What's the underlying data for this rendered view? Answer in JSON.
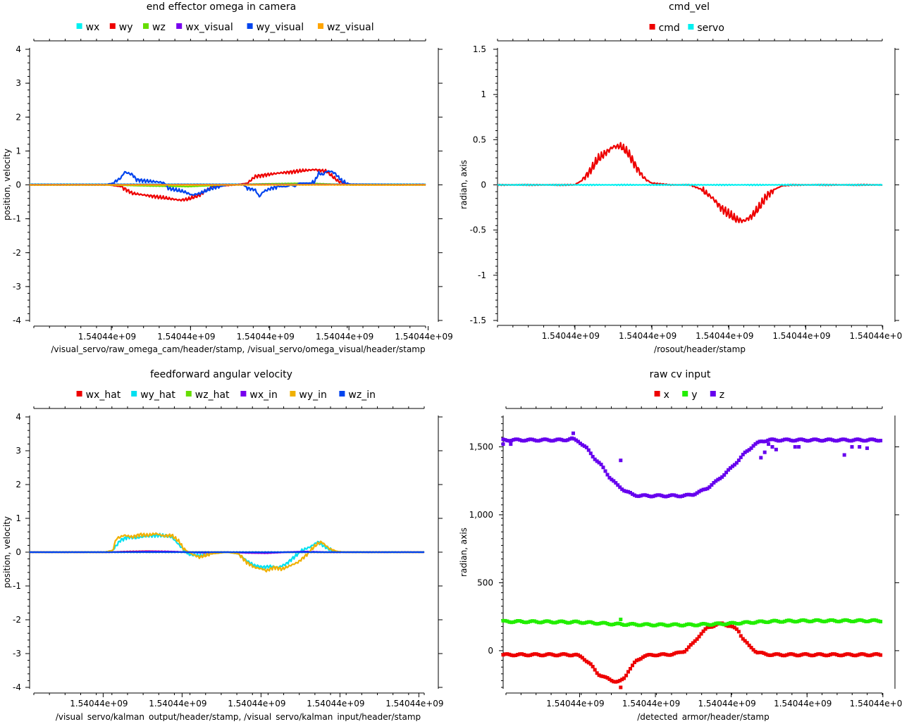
{
  "page": {
    "background": "#ffffff"
  },
  "chart_data": [
    {
      "id": "p1",
      "type": "line",
      "title": "end effector omega in camera",
      "xlabel": "/visual_servo/raw_omega_cam/header/stamp, /visual_servo/omega_visual/header/stamp",
      "ylabel": "position, velocity",
      "ylim": [
        -4,
        4
      ],
      "yticks": [
        4,
        3,
        2,
        1,
        0,
        -1,
        -2,
        -3,
        -4
      ],
      "ytick_labels": [
        "4",
        "3",
        "2",
        "1",
        "0",
        "-1",
        "-2",
        "-3",
        "-4"
      ],
      "xlim": [
        0,
        100
      ],
      "xticks": [
        18.5,
        38.5,
        58.5,
        78.5,
        98.5
      ],
      "xtick_labels": [
        "1.54044e+09",
        "1.54044e+09",
        "1.54044e+09",
        "1.54044e+09",
        "1.54044e+09"
      ],
      "legend": "top-center",
      "series": [
        {
          "name": "wx",
          "color": "#00f0f0",
          "x": [
            0,
            100
          ],
          "y": [
            0.02,
            0.02
          ]
        },
        {
          "name": "wy",
          "color": "#ee0000",
          "x": [
            0,
            20,
            23,
            26,
            29,
            32,
            35,
            38,
            40,
            43,
            46,
            52,
            55,
            57,
            60,
            63,
            66,
            69,
            72,
            75,
            78,
            81,
            84,
            100
          ],
          "y": [
            0,
            0,
            -0.05,
            -0.25,
            -0.3,
            -0.35,
            -0.4,
            -0.45,
            -0.42,
            -0.3,
            -0.05,
            0,
            0.05,
            0.25,
            0.3,
            0.35,
            0.38,
            0.42,
            0.45,
            0.4,
            0.1,
            0,
            0,
            0
          ]
        },
        {
          "name": "wz",
          "color": "#66dd00",
          "x": [
            0,
            20,
            30,
            40,
            50,
            60,
            70,
            80,
            100
          ],
          "y": [
            0,
            0,
            -0.03,
            -0.05,
            0,
            0.03,
            0.05,
            0,
            0
          ]
        },
        {
          "name": "wx_visual",
          "color": "#7700ee",
          "x": [
            0,
            100
          ],
          "y": [
            0.01,
            0.01
          ]
        },
        {
          "name": "wy_visual",
          "color": "#0044ee",
          "x": [
            0,
            19,
            21,
            23,
            24,
            26,
            27,
            29,
            31,
            33,
            34,
            35,
            37,
            39,
            41,
            43,
            46,
            50,
            52,
            54,
            55,
            57,
            58,
            59,
            61,
            63,
            65,
            66,
            67,
            68,
            70,
            71,
            72,
            73,
            74,
            75,
            76,
            77,
            79,
            81,
            100
          ],
          "y": [
            0,
            0,
            0.05,
            0.2,
            0.38,
            0.3,
            0.15,
            0.12,
            0.1,
            0.08,
            0.05,
            -0.1,
            -0.15,
            -0.2,
            -0.3,
            -0.25,
            -0.1,
            0,
            0,
            0,
            -0.1,
            -0.15,
            -0.35,
            -0.2,
            -0.1,
            -0.05,
            -0.05,
            0,
            -0.05,
            0.05,
            0.05,
            0.05,
            0.1,
            0.35,
            0.3,
            0.4,
            0.4,
            0.35,
            0.1,
            0.02,
            0
          ]
        },
        {
          "name": "wz_visual",
          "color": "#ffa500",
          "x": [
            0,
            100
          ],
          "y": [
            0,
            0
          ]
        }
      ]
    },
    {
      "id": "p2",
      "type": "line",
      "title": "cmd_vel",
      "xlabel": "/rosout/header/stamp",
      "ylabel": "radian, axis",
      "ylim": [
        -1.5,
        1.5
      ],
      "yticks": [
        1.5,
        1,
        0.5,
        0,
        -0.5,
        -1,
        -1.5
      ],
      "ytick_labels": [
        "1.5",
        "1",
        "0.5",
        "0",
        "-0.5",
        "-1",
        "-1.5"
      ],
      "xlim": [
        0,
        100
      ],
      "xticks": [
        18.3,
        38.3,
        58.3,
        78.3,
        98.3
      ],
      "xtick_labels": [
        "1.54044e+09",
        "1.54044e+09",
        "1.54044e+09",
        "1.54044e+09",
        "1.54044e+09"
      ],
      "legend": "top-center",
      "series": [
        {
          "name": "cmd",
          "color": "#ee0000",
          "x": [
            0,
            20,
            22,
            24,
            26,
            28,
            30,
            32,
            34,
            36,
            38,
            40,
            45,
            50,
            53,
            56,
            58,
            60,
            62,
            64,
            66,
            68,
            70,
            72,
            74,
            77,
            80,
            100
          ],
          "y": [
            0,
            0,
            0.05,
            0.15,
            0.28,
            0.35,
            0.42,
            0.43,
            0.35,
            0.2,
            0.08,
            0.02,
            0,
            0,
            -0.05,
            -0.15,
            -0.25,
            -0.32,
            -0.38,
            -0.4,
            -0.35,
            -0.25,
            -0.12,
            -0.05,
            -0.01,
            0,
            0,
            0
          ]
        },
        {
          "name": "servo",
          "color": "#00f0f0",
          "x": [
            0,
            100
          ],
          "y": [
            0,
            0
          ]
        }
      ]
    },
    {
      "id": "p3",
      "type": "line",
      "title": "feedforward angular velocity",
      "xlabel": "/visual_servo/kalman_output/header/stamp, /visual_servo/kalman_input/header/stamp",
      "ylabel": "position, velocity",
      "ylim": [
        -4,
        4
      ],
      "yticks": [
        4,
        3,
        2,
        1,
        0,
        -1,
        -2,
        -3,
        -4
      ],
      "ytick_labels": [
        "4",
        "3",
        "2",
        "1",
        "0",
        "-1",
        "-2",
        "-3",
        "-4"
      ],
      "xlim": [
        0,
        100
      ],
      "xticks": [
        16.5,
        36.5,
        56.5,
        76.5,
        96.5
      ],
      "xtick_labels": [
        "1.54044e+09",
        "1.54044e+09",
        "1.54044e+09",
        "1.54044e+09",
        "1.54044e+09"
      ],
      "legend": "top-center",
      "series": [
        {
          "name": "wx_hat",
          "color": "#ee0000",
          "x": [
            0,
            20,
            25,
            30,
            35,
            40,
            45,
            50,
            55,
            60,
            65,
            70,
            100
          ],
          "y": [
            0,
            0,
            0.02,
            0.03,
            0.02,
            0,
            0,
            0,
            -0.02,
            -0.03,
            0,
            0,
            0
          ]
        },
        {
          "name": "wy_hat",
          "color": "#00e0f0",
          "x": [
            0,
            19,
            21,
            23,
            25,
            27,
            30,
            33,
            36,
            38,
            40,
            43,
            46,
            50,
            53,
            55,
            57,
            59,
            61,
            63,
            65,
            67,
            69,
            71,
            73,
            75,
            77,
            80,
            100
          ],
          "y": [
            0,
            0,
            0.05,
            0.35,
            0.45,
            0.42,
            0.48,
            0.5,
            0.45,
            0.2,
            -0.05,
            -0.1,
            -0.05,
            0,
            -0.05,
            -0.25,
            -0.4,
            -0.45,
            -0.42,
            -0.45,
            -0.35,
            -0.15,
            0.05,
            0.15,
            0.3,
            0.15,
            0.02,
            0,
            0
          ]
        },
        {
          "name": "wz_hat",
          "color": "#66dd00",
          "x": [
            0,
            100
          ],
          "y": [
            0,
            0
          ]
        },
        {
          "name": "wx_in",
          "color": "#7700ee",
          "x": [
            0,
            20,
            25,
            30,
            35,
            40,
            45,
            50,
            55,
            60,
            65,
            70,
            75,
            80,
            100
          ],
          "y": [
            0,
            0,
            0.01,
            0.02,
            0.02,
            0,
            -0.02,
            0,
            -0.02,
            -0.03,
            0,
            0.02,
            0,
            0,
            0
          ]
        },
        {
          "name": "wy_in",
          "color": "#f0b000",
          "x": [
            0,
            19,
            21,
            22,
            24,
            26,
            28,
            30,
            32,
            34,
            36,
            38,
            39,
            41,
            43,
            46,
            50,
            53,
            55,
            57,
            59,
            60,
            62,
            64,
            66,
            68,
            70,
            72,
            73,
            74,
            76,
            78,
            80,
            100
          ],
          "y": [
            0,
            0,
            0.05,
            0.4,
            0.5,
            0.45,
            0.52,
            0.5,
            0.55,
            0.48,
            0.5,
            0.3,
            0.1,
            -0.05,
            -0.15,
            -0.05,
            0,
            -0.05,
            -0.3,
            -0.45,
            -0.5,
            -0.55,
            -0.45,
            -0.5,
            -0.4,
            -0.3,
            -0.1,
            0.15,
            0.25,
            0.3,
            0.1,
            0.02,
            0,
            0
          ]
        },
        {
          "name": "wz_in",
          "color": "#0044ee",
          "x": [
            0,
            100
          ],
          "y": [
            0,
            0
          ]
        }
      ]
    },
    {
      "id": "p4",
      "type": "scatter",
      "title": "raw cv input",
      "xlabel": "/detected_armor/header/stamp",
      "ylabel": "radian, axis",
      "ylim": [
        -270,
        1720
      ],
      "yticks": [
        1500,
        1000,
        500,
        0
      ],
      "ytick_labels": [
        "1,500",
        "1,000",
        "500",
        "0"
      ],
      "xlim": [
        0,
        100
      ],
      "xticks": [
        18.3,
        38.3,
        58.3,
        78.3,
        98.3
      ],
      "xtick_labels": [
        "1.54044e+09",
        "1.54044e+09",
        "1.54044e+09",
        "1.54044e+09",
        "1.54044e+09"
      ],
      "legend": "top-center",
      "series": [
        {
          "name": "x",
          "color": "#ee0000",
          "curve_x": [
            0,
            19,
            21,
            23,
            25,
            27,
            29,
            30,
            31,
            32,
            33,
            35,
            37,
            40,
            43,
            46,
            48,
            50,
            52,
            54,
            56,
            58,
            60,
            62,
            63,
            65,
            67,
            69,
            71,
            73,
            76,
            80,
            100
          ],
          "curve_y": [
            -30,
            -30,
            -50,
            -100,
            -170,
            -200,
            -220,
            -230,
            -225,
            -200,
            -150,
            -80,
            -40,
            -30,
            -30,
            -20,
            0,
            50,
            120,
            170,
            190,
            200,
            180,
            150,
            100,
            30,
            -10,
            -25,
            -30,
            -30,
            -30,
            -30,
            -30
          ],
          "outlier_x": [
            31
          ],
          "outlier_y": [
            -270
          ]
        },
        {
          "name": "y",
          "color": "#22ee00",
          "curve_x": [
            0,
            20,
            30,
            40,
            50,
            60,
            70,
            80,
            100
          ],
          "curve_y": [
            215,
            210,
            195,
            190,
            190,
            200,
            215,
            220,
            220
          ],
          "outlier_x": [
            31
          ],
          "outlier_y": [
            230
          ]
        },
        {
          "name": "z",
          "color": "#6600ee",
          "curve_x": [
            0,
            16,
            18,
            20,
            22,
            24,
            26,
            28,
            30,
            32,
            34,
            36,
            38,
            42,
            46,
            48,
            50,
            52,
            54,
            56,
            58,
            60,
            62,
            64,
            66,
            68,
            70,
            100
          ],
          "curve_y": [
            1550,
            1550,
            1560,
            1540,
            1490,
            1420,
            1360,
            1280,
            1220,
            1180,
            1150,
            1140,
            1140,
            1140,
            1140,
            1140,
            1150,
            1170,
            1200,
            1240,
            1290,
            1340,
            1400,
            1460,
            1510,
            1540,
            1550,
            1550
          ],
          "outlier_x": [
            0,
            2,
            18.5,
            31,
            68,
            69,
            70,
            71,
            72,
            77,
            78,
            90,
            92,
            94,
            96
          ],
          "outlier_y": [
            1520,
            1520,
            1600,
            1400,
            1420,
            1460,
            1520,
            1500,
            1480,
            1500,
            1500,
            1440,
            1500,
            1500,
            1490
          ]
        }
      ]
    }
  ]
}
